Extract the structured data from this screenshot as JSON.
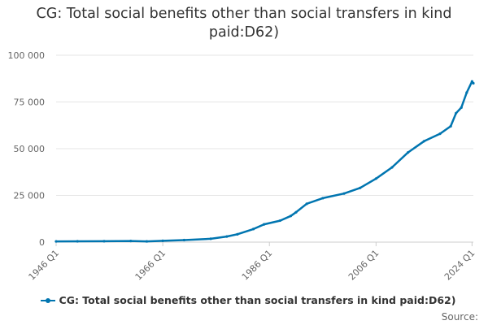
{
  "chart_data": {
    "type": "line",
    "title": "CG: Total social benefits other than social transfers in kind paid:D62)",
    "xlabel": "",
    "ylabel": "",
    "x_ticks": [
      "1946 Q1",
      "1966 Q1",
      "1986 Q1",
      "2006 Q1",
      "2024 Q1"
    ],
    "y_ticks": [
      "0",
      "25 000",
      "50 000",
      "75 000",
      "100 000"
    ],
    "ylim": [
      0,
      100000
    ],
    "grid": true,
    "legend": "bottom",
    "series": [
      {
        "name": "CG: Total social benefits other than social transfers in kind paid:D62)",
        "color": "#0075b0",
        "x": [
          1946,
          1950,
          1955,
          1960,
          1963,
          1966,
          1970,
          1975,
          1978,
          1980,
          1983,
          1985,
          1988,
          1990,
          1991,
          1993,
          1996,
          2000,
          2003,
          2006,
          2009,
          2012,
          2015,
          2018,
          2020,
          2021,
          2022,
          2023,
          2024,
          2024.25
        ],
        "y": [
          400,
          450,
          500,
          600,
          400,
          700,
          1100,
          1800,
          3000,
          4200,
          7000,
          9500,
          11500,
          14000,
          16000,
          20500,
          23500,
          26000,
          29000,
          34000,
          40000,
          48000,
          54000,
          58000,
          62000,
          69000,
          72000,
          80000,
          86000,
          85000
        ]
      }
    ]
  },
  "credits": "Source:"
}
